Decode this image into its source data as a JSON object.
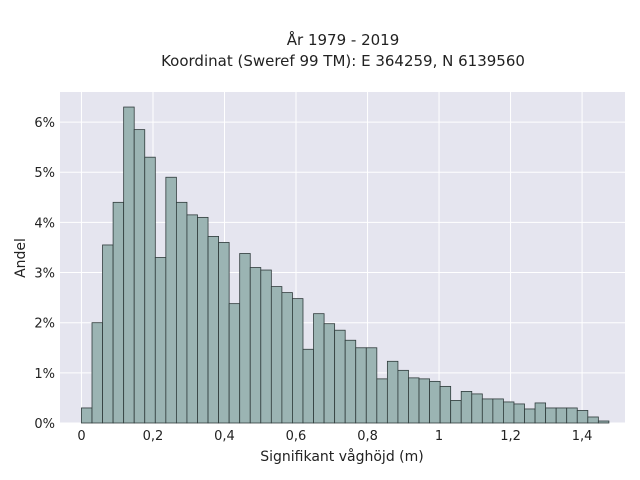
{
  "chart_data": {
    "type": "bar",
    "title": "År 1979 - 2019",
    "subtitle": "Koordinat (Sweref 99 TM): E 364259, N 6139560",
    "xlabel": "Signifikant våghöjd (m)",
    "ylabel": "Andel",
    "xlim": [
      -0.06,
      1.52
    ],
    "ylim": [
      0,
      6.6
    ],
    "bin_width": 0.0295,
    "bin_start": 0.0,
    "values": [
      0.3,
      2.0,
      3.55,
      4.4,
      6.3,
      5.85,
      5.3,
      3.3,
      4.9,
      4.4,
      4.15,
      4.1,
      3.72,
      3.6,
      2.38,
      3.38,
      3.1,
      3.05,
      2.72,
      2.6,
      2.48,
      1.47,
      2.18,
      1.98,
      1.85,
      1.65,
      1.5,
      1.5,
      0.88,
      1.23,
      1.05,
      0.9,
      0.88,
      0.83,
      0.73,
      0.45,
      0.63,
      0.58,
      0.48,
      0.48,
      0.42,
      0.38,
      0.28,
      0.4,
      0.3,
      0.3,
      0.3,
      0.25,
      0.12,
      0.04
    ],
    "x_ticks": [
      0,
      0.2,
      0.4,
      0.6,
      0.8,
      1,
      1.2,
      1.4
    ],
    "x_tick_labels": [
      "0",
      "0,2",
      "0,4",
      "0,6",
      "0,8",
      "1",
      "1,2",
      "1,4"
    ],
    "y_ticks": [
      0,
      1,
      2,
      3,
      4,
      5,
      6
    ],
    "y_tick_labels": [
      "0%",
      "1%",
      "2%",
      "3%",
      "4%",
      "5%",
      "6%"
    ],
    "grid": true,
    "colors": {
      "background": "#e5e5ef",
      "bar_fill": "#9bb4b3",
      "bar_edge": "#2f3b3b",
      "grid": "#ffffff"
    }
  }
}
